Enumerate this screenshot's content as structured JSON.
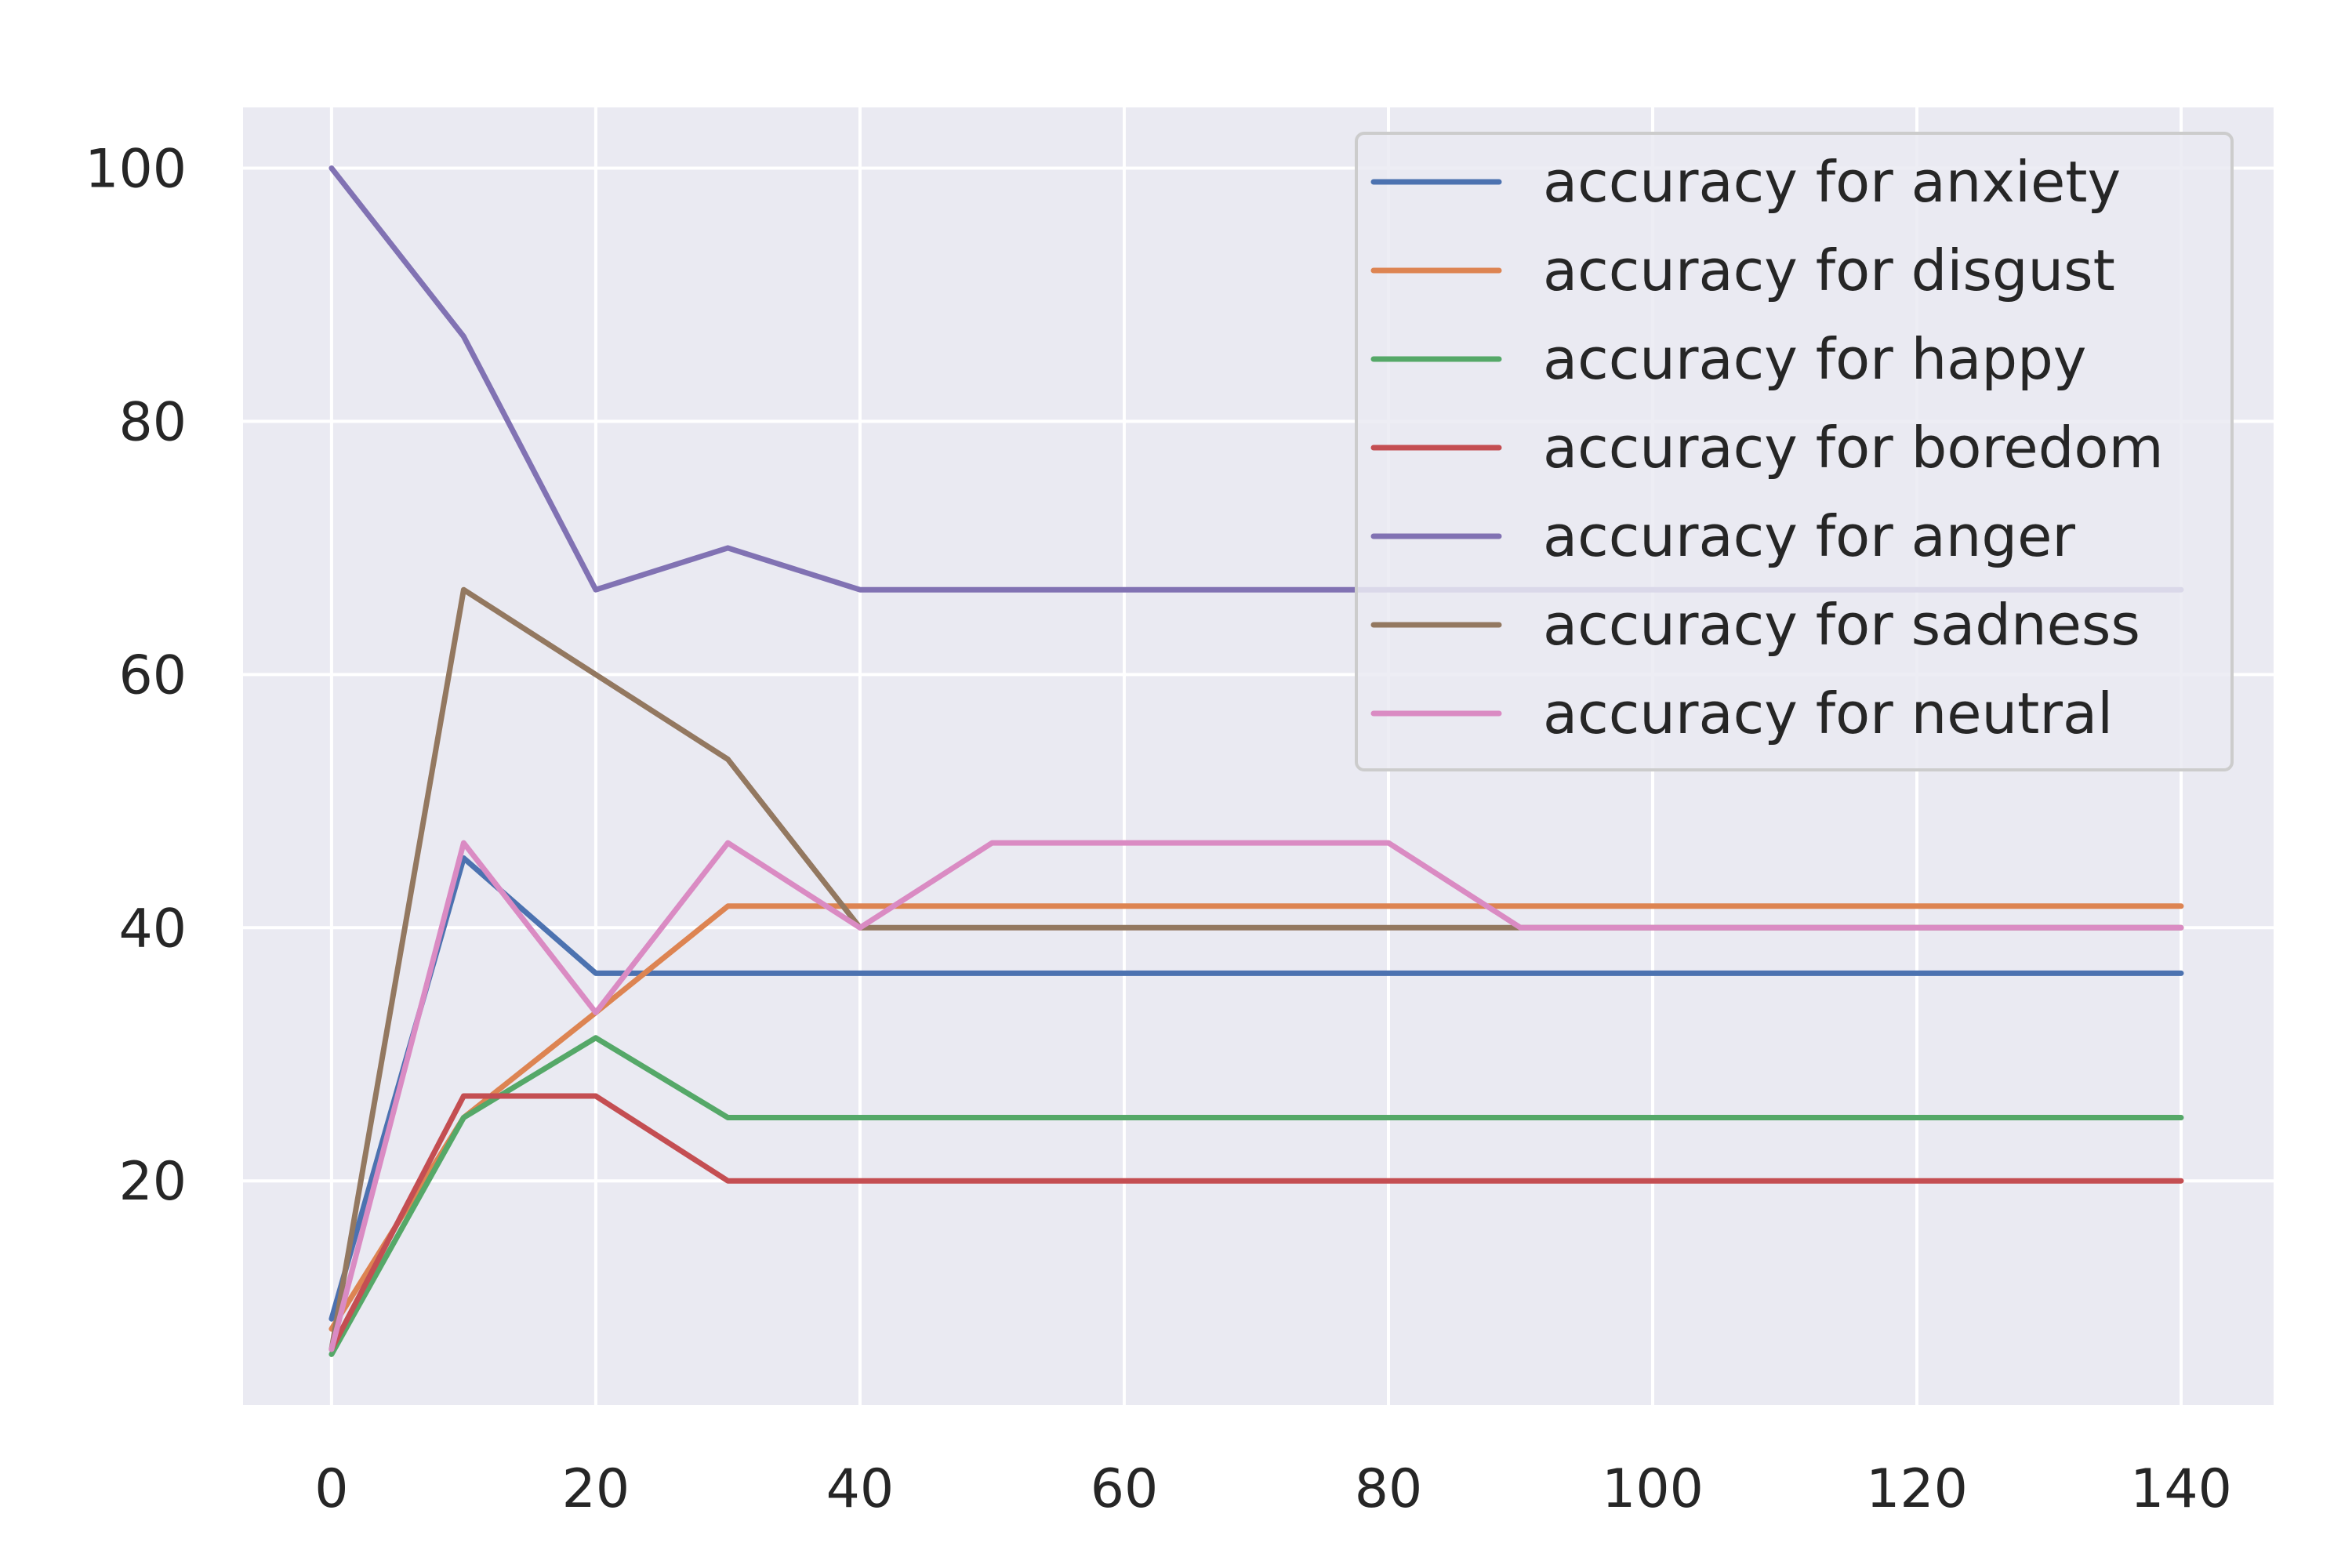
{
  "chart_data": {
    "type": "line",
    "title": "",
    "xlabel": "",
    "ylabel": "",
    "xlim": [
      -6.7,
      147
    ],
    "ylim": [
      2.3,
      104.8
    ],
    "x_ticks": [
      0,
      20,
      40,
      60,
      80,
      100,
      120,
      140
    ],
    "y_ticks": [
      20,
      40,
      60,
      80,
      100
    ],
    "grid": true,
    "legend_position": "top-right",
    "colors": {
      "plot_background": "#eaeaf2",
      "grid": "#ffffff",
      "legend_background": "#eaeaf2",
      "legend_border": "#cccccc",
      "text": "#262626"
    },
    "x": [
      0,
      10,
      20,
      30,
      40,
      50,
      60,
      70,
      80,
      90,
      100,
      110,
      120,
      130,
      140
    ],
    "series": [
      {
        "name": "accuracy for anxiety",
        "color": "#4c72b0",
        "values": [
          9.1,
          45.5,
          36.4,
          36.4,
          36.4,
          36.4,
          36.4,
          36.4,
          36.4,
          36.4,
          36.4,
          36.4,
          36.4,
          36.4,
          36.4
        ]
      },
      {
        "name": "accuracy for disgust",
        "color": "#dd8452",
        "values": [
          8.3,
          25.0,
          33.3,
          41.7,
          41.7,
          41.7,
          41.7,
          41.7,
          41.7,
          41.7,
          41.7,
          41.7,
          41.7,
          41.7,
          41.7
        ]
      },
      {
        "name": "accuracy for happy",
        "color": "#55a868",
        "values": [
          6.3,
          25.0,
          31.3,
          25.0,
          25.0,
          25.0,
          25.0,
          25.0,
          25.0,
          25.0,
          25.0,
          25.0,
          25.0,
          25.0,
          25.0
        ]
      },
      {
        "name": "accuracy for boredom",
        "color": "#c44e52",
        "values": [
          6.7,
          26.7,
          26.7,
          20.0,
          20.0,
          20.0,
          20.0,
          20.0,
          20.0,
          20.0,
          20.0,
          20.0,
          20.0,
          20.0,
          20.0
        ]
      },
      {
        "name": "accuracy for anger",
        "color": "#8172b3",
        "values": [
          100.0,
          86.7,
          66.7,
          70.0,
          66.7,
          66.7,
          66.7,
          66.7,
          66.7,
          66.7,
          66.7,
          66.7,
          66.7,
          66.7,
          66.7
        ]
      },
      {
        "name": "accuracy for sadness",
        "color": "#937860",
        "values": [
          6.7,
          66.7,
          60.0,
          53.3,
          40.0,
          40.0,
          40.0,
          40.0,
          40.0,
          40.0,
          40.0,
          40.0,
          40.0,
          40.0,
          40.0
        ]
      },
      {
        "name": "accuracy for neutral",
        "color": "#da8bc3",
        "values": [
          6.7,
          46.7,
          33.3,
          46.7,
          40.0,
          46.7,
          46.7,
          46.7,
          46.7,
          40.0,
          40.0,
          40.0,
          40.0,
          40.0,
          40.0
        ]
      }
    ]
  }
}
